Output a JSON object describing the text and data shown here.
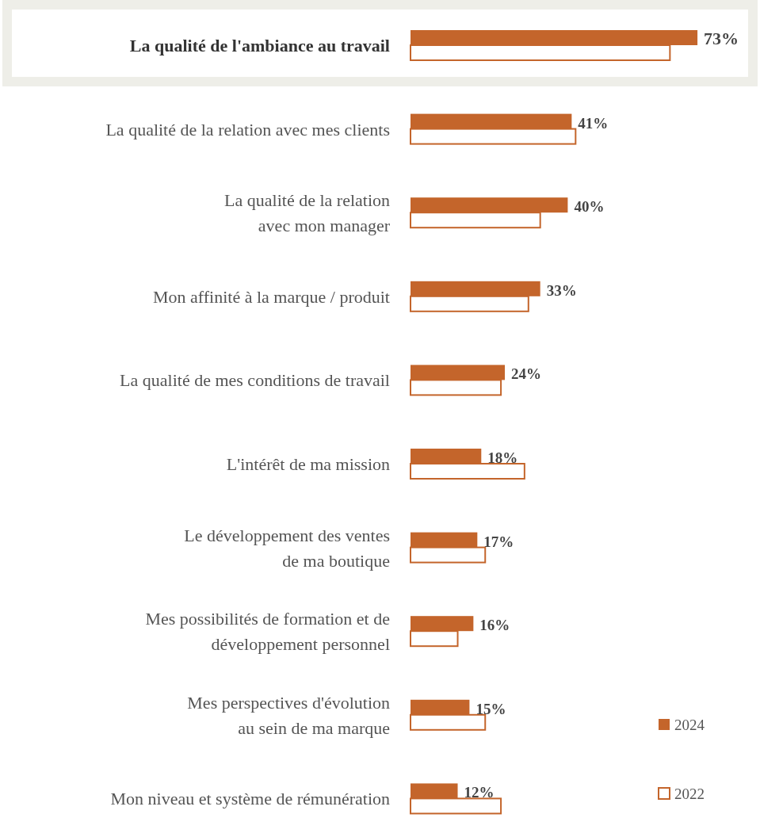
{
  "chart_data": {
    "type": "bar",
    "orientation": "horizontal",
    "legend": "bottom right",
    "categories": [
      "La qualité de l'ambiance au travail",
      "La qualité de la relation avec mes clients",
      "La qualité de la relation\navec mon manager",
      "Mon affinité à la marque / produit",
      "La qualité de mes conditions de travail",
      "L'intérêt de ma mission",
      "Le développement des ventes\nde ma boutique",
      "Mes possibilités de formation et de\ndéveloppement personnel",
      "Mes perspectives d'évolution\nau sein de ma marque",
      "Mon niveau et système de rémunération"
    ],
    "series": [
      {
        "name": "2024",
        "color": "#c4652b",
        "values": [
          73,
          41,
          40,
          33,
          24,
          18,
          17,
          16,
          15,
          12
        ],
        "value_labels": [
          "73%",
          "41%",
          "40%",
          "33%",
          "24%",
          "18%",
          "17%",
          "16%",
          "15%",
          "12%"
        ]
      },
      {
        "name": "2022",
        "color": "#c4652b",
        "values": [
          66,
          42,
          33,
          30,
          23,
          29,
          19,
          12,
          19,
          23
        ]
      }
    ]
  }
}
